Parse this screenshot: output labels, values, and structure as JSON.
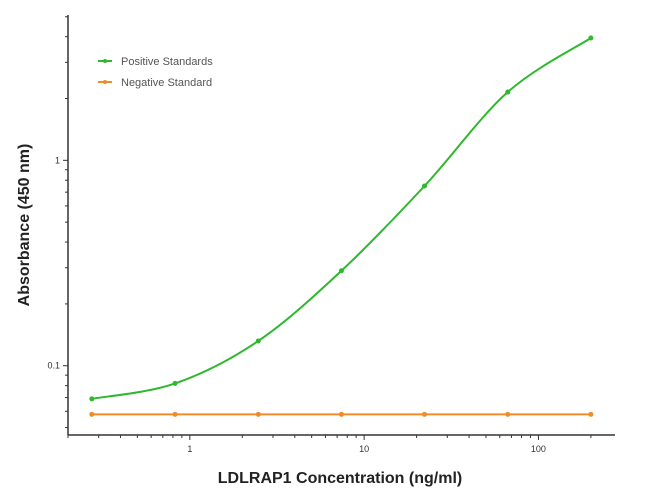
{
  "chart_data": {
    "type": "line",
    "title": "",
    "xlabel": "LDLRAP1 Concentration (ng/ml)",
    "ylabel": "Absorbance (450 nm)",
    "x_scale": "log",
    "y_scale": "log",
    "xlim": [
      0.2,
      275
    ],
    "ylim": [
      0.046,
      5.1
    ],
    "x_ticks": [
      {
        "value": 1,
        "label": "1"
      },
      {
        "value": 10,
        "label": "10"
      },
      {
        "value": 100,
        "label": "100"
      }
    ],
    "y_ticks": [
      {
        "value": 0.1,
        "label": "0.1"
      },
      {
        "value": 1,
        "label": "1"
      }
    ],
    "grid": false,
    "legend_position": "top-left",
    "series": [
      {
        "name": "Positive Standards",
        "color": "#2db82d",
        "fit": "smooth curve",
        "x": [
          0.274,
          0.823,
          2.47,
          7.41,
          22.2,
          66.7,
          200
        ],
        "y": [
          0.069,
          0.082,
          0.132,
          0.29,
          0.75,
          2.15,
          3.94
        ]
      },
      {
        "name": "Negative Standard",
        "color": "#f08c28",
        "fit": "straight line",
        "x": [
          0.274,
          0.823,
          2.47,
          7.41,
          22.2,
          66.7,
          200
        ],
        "y": [
          0.058,
          0.058,
          0.058,
          0.058,
          0.058,
          0.058,
          0.058
        ]
      }
    ]
  }
}
